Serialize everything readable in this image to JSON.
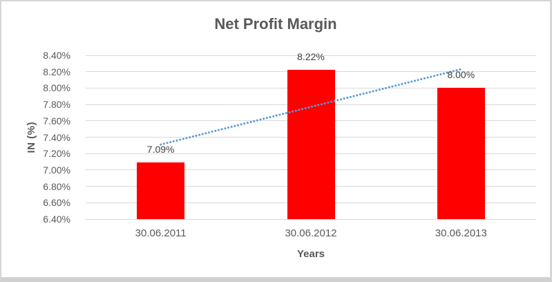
{
  "chart_data": {
    "type": "bar",
    "title": "Net Profit Margin",
    "categories": [
      "30.06.2011",
      "30.06.2012",
      "30.06.2013"
    ],
    "values": [
      7.09,
      8.22,
      8.0
    ],
    "data_labels": [
      "7.09%",
      "8.22%",
      "8.00%"
    ],
    "xlabel": "Years",
    "ylabel": "IN (%)",
    "ylim": [
      6.4,
      8.4
    ],
    "ytick_step": 0.2,
    "ytick_labels": [
      "8.40%",
      "8.20%",
      "8.00%",
      "7.80%",
      "7.60%",
      "7.40%",
      "7.20%",
      "7.00%",
      "6.80%",
      "6.60%",
      "6.40%"
    ],
    "grid": true,
    "legend": "none",
    "bar_color": "#FF0000",
    "gridline_color": "#d9d9d9",
    "axis_text_color": "#595959",
    "data_label_color": "#404040",
    "trendline": {
      "type": "linear",
      "style": "dotted",
      "color": "#5B9BD5",
      "start_value": 7.31,
      "end_value": 8.23
    }
  }
}
